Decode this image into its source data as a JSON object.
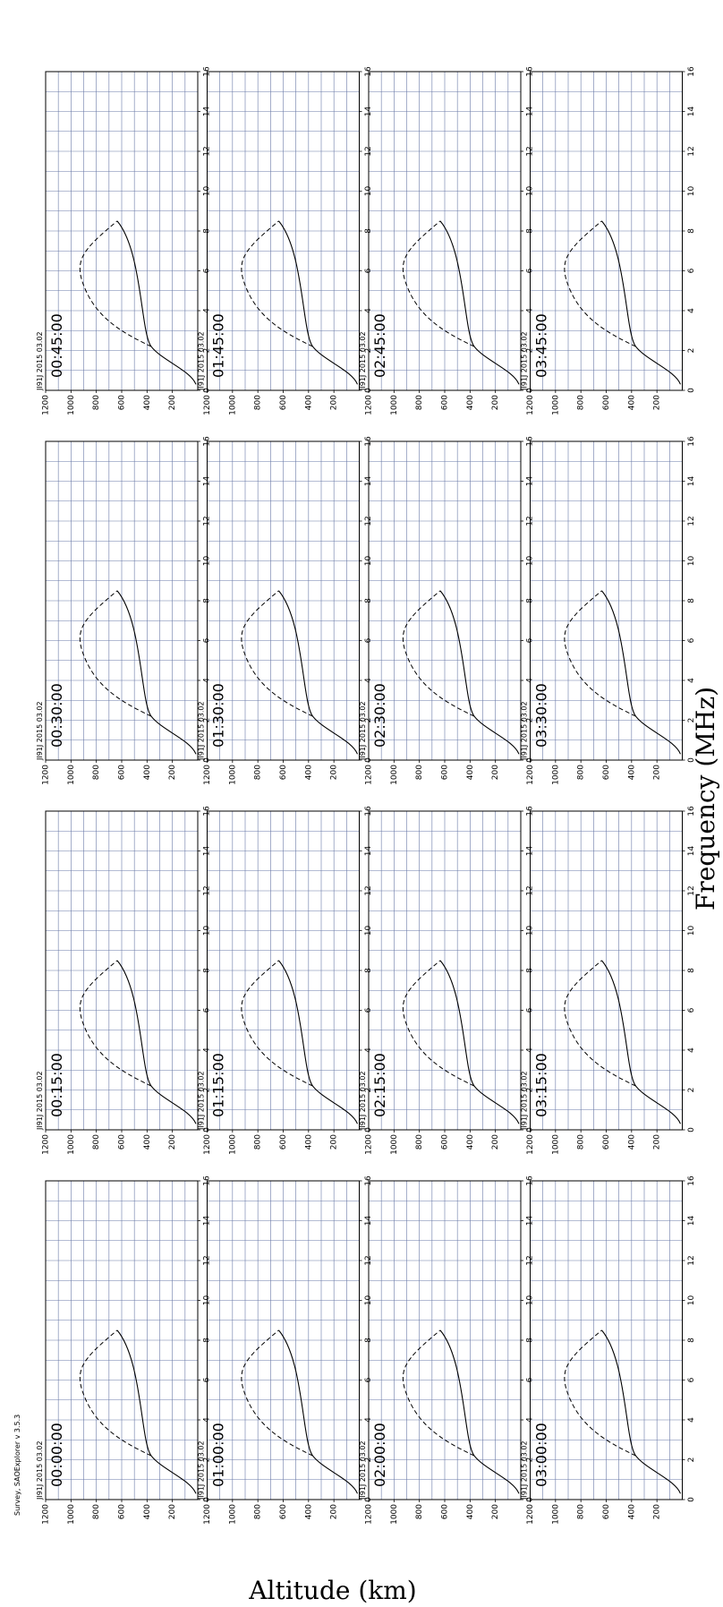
{
  "survey": "Survey, SAOExplorer v 3.5.3",
  "axes": {
    "x_label": "Frequency (MHz)",
    "y_label": "Altitude (km)",
    "x_range": [
      0,
      16
    ],
    "y_range": [
      0,
      1200
    ],
    "x_ticks": [
      0,
      2,
      4,
      6,
      8,
      10,
      12,
      14,
      16
    ],
    "y_ticks": [
      200,
      400,
      600,
      800,
      1000,
      1200
    ]
  },
  "panels": [
    {
      "station": "JI91J 2015 03.02",
      "time": "00:00:00"
    },
    {
      "station": "JI91J 2015 03.02",
      "time": "00:15:00"
    },
    {
      "station": "JI91J 2015 03.02",
      "time": "00:30:00"
    },
    {
      "station": "JI91J 2015 03.02",
      "time": "00:45:00"
    },
    {
      "station": "JI91J 2015 03.02",
      "time": "01:00:00"
    },
    {
      "station": "JI91J 2015 03.02",
      "time": "01:15:00"
    },
    {
      "station": "JI91J 2015 03.02",
      "time": "01:30:00"
    },
    {
      "station": "JI91J 2015 03.02",
      "time": "01:45:00"
    },
    {
      "station": "JI91J 2015 03.02",
      "time": "02:00:00"
    },
    {
      "station": "JI91J 2015 03.02",
      "time": "02:15:00"
    },
    {
      "station": "JI91J 2015 03.02",
      "time": "02:30:00"
    },
    {
      "station": "JI91J 2015 03.02",
      "time": "02:45:00"
    },
    {
      "station": "JI91J 2015 03.02",
      "time": "03:00:00"
    },
    {
      "station": "JI91J 2015 03.02",
      "time": "03:15:00"
    },
    {
      "station": "JI91J 2015 03.02",
      "time": "03:30:00"
    },
    {
      "station": "JI91J 2015 03.02",
      "time": "03:45:00"
    }
  ]
}
